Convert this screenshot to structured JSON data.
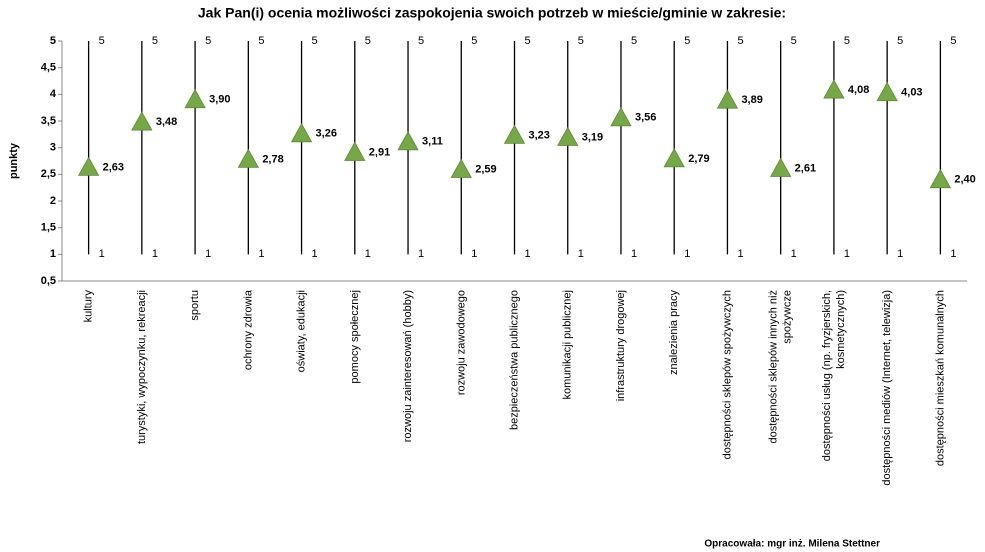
{
  "chart_data": {
    "type": "highlow",
    "title": "Jak Pan(i) ocenia możliwości zaspokojenia swoich potrzeb w mieście/gminie w zakresie:",
    "y_label": "punkty",
    "note": "Opracowała: mgr inż. Milena Stettner",
    "categories": [
      "kultury",
      "turystyki, wypoczynku, rekreacji",
      "sportu",
      "ochrony zdrowia",
      "oświaty, edukacji",
      "pomocy społecznej",
      "rozwoju zainteresowań (hobby)",
      "rozwoju zawodowego",
      "bezpieczeństwa publicznego",
      "komunikacji publicznej",
      "infrastruktury drogowej",
      "znalezienia pracy",
      "dostępności sklepów spożywczych",
      "dostępności sklepów innych niż\nspożywcze",
      "dostępności usług (np. fryzjerskich,\nkosmetycznych)",
      "dostępności mediów (Internet, telewizja)",
      "dostępności mieszkań komunalnych"
    ],
    "values": [
      2.63,
      3.48,
      3.9,
      2.78,
      3.26,
      2.91,
      3.11,
      2.59,
      3.23,
      3.19,
      3.56,
      2.79,
      3.89,
      2.61,
      4.08,
      4.03,
      2.4
    ],
    "value_labels": [
      "2,63",
      "3,48",
      "3,90",
      "2,78",
      "3,26",
      "2,91",
      "3,11",
      "2,59",
      "3,23",
      "3,19",
      "3,56",
      "2,79",
      "3,89",
      "2,61",
      "4,08",
      "4,03",
      "2,40"
    ],
    "highs": [
      5,
      5,
      5,
      5,
      5,
      5,
      5,
      5,
      5,
      5,
      5,
      5,
      5,
      5,
      5,
      5,
      5
    ],
    "lows": [
      1,
      1,
      1,
      1,
      1,
      1,
      1,
      1,
      1,
      1,
      1,
      1,
      1,
      1,
      1,
      1,
      1
    ],
    "color": "#77a847",
    "ylim": [
      0.5,
      5
    ],
    "yticks": [
      {
        "value": 0.5,
        "label": "0,5"
      },
      1,
      {
        "value": 1.5,
        "label": "1,5"
      },
      2,
      {
        "value": 2.5,
        "label": "2,5"
      },
      3,
      {
        "value": 3.5,
        "label": "3,5"
      },
      4,
      {
        "value": 4.5,
        "label": "4,5"
      },
      5
    ],
    "grid": false
  }
}
